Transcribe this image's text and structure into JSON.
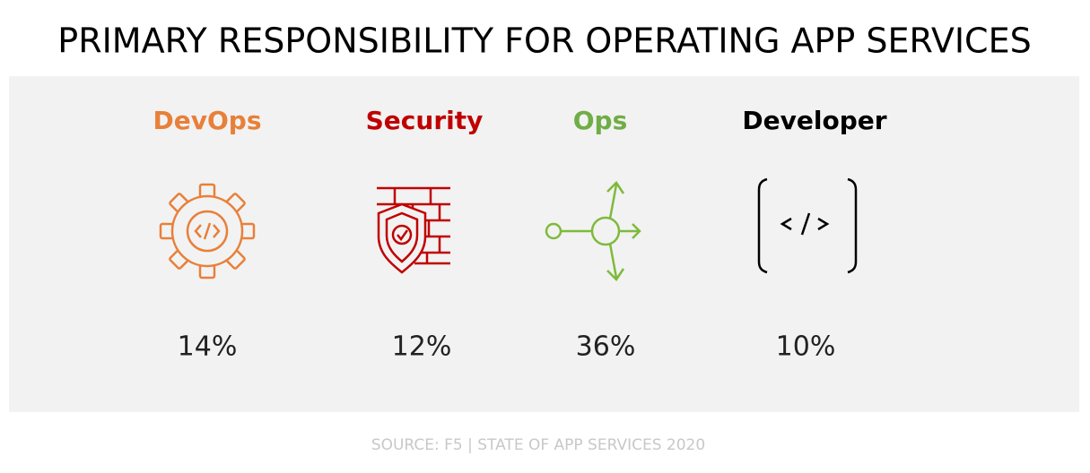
{
  "header": {
    "title": "PRIMARY RESPONSIBILITY FOR OPERATING APP SERVICES"
  },
  "items": [
    {
      "label": "DevOps",
      "percent": "14%"
    },
    {
      "label": "Security",
      "percent": "12%"
    },
    {
      "label": "Ops",
      "percent": "36%"
    },
    {
      "label": "Developer",
      "percent": "10%"
    }
  ],
  "footer": {
    "source": "SOURCE: F5 | STATE OF APP SERVICES 2020"
  }
}
